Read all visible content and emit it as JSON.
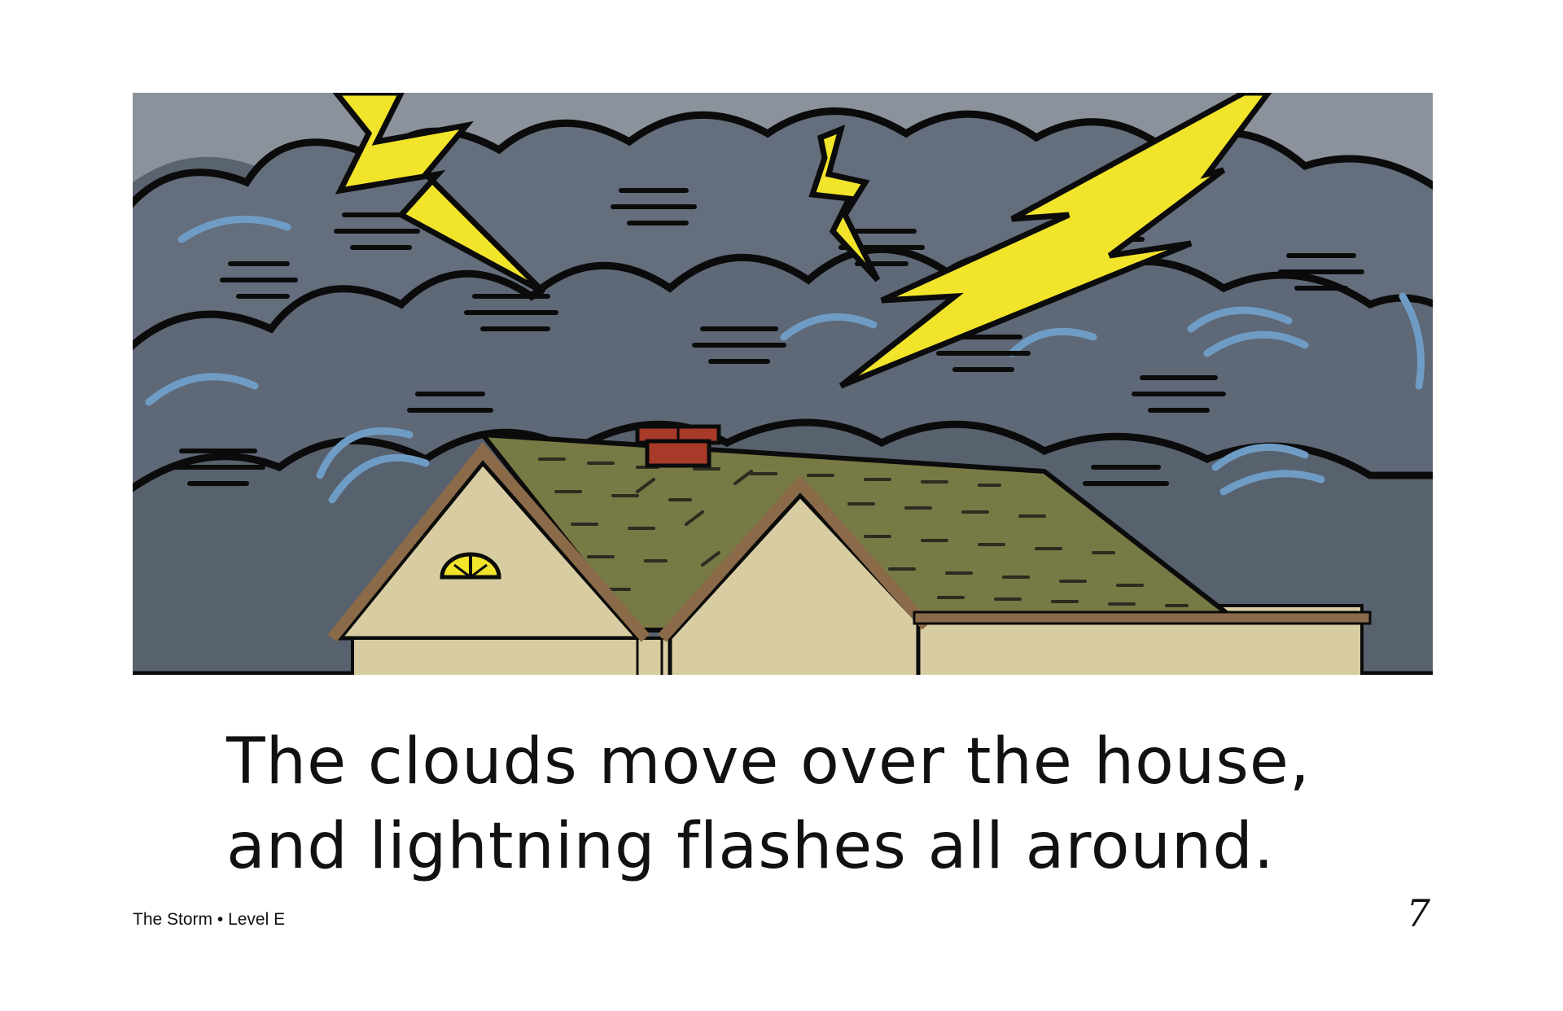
{
  "page": {
    "text_lines": [
      "The clouds move over the house,",
      "and lightning flashes all around."
    ],
    "footer": {
      "book_title": "The Storm",
      "separator": "•",
      "level": "Level E"
    },
    "page_number": "7"
  },
  "illustration": {
    "subject_icons": [
      "storm-cloud-icon",
      "lightning-bolt-icon",
      "house-icon",
      "chimney-icon",
      "attic-window-icon"
    ],
    "colors": {
      "sky": "#5a6370",
      "sky_light": "#8b929c",
      "cloud": "#646e7c",
      "cloud_swirl": "#6f9cc4",
      "lightning": "#f2e42a",
      "roof": "#777a45",
      "wall": "#d8cda2",
      "trim": "#8a6a48",
      "chimney": "#a83a2a"
    }
  }
}
